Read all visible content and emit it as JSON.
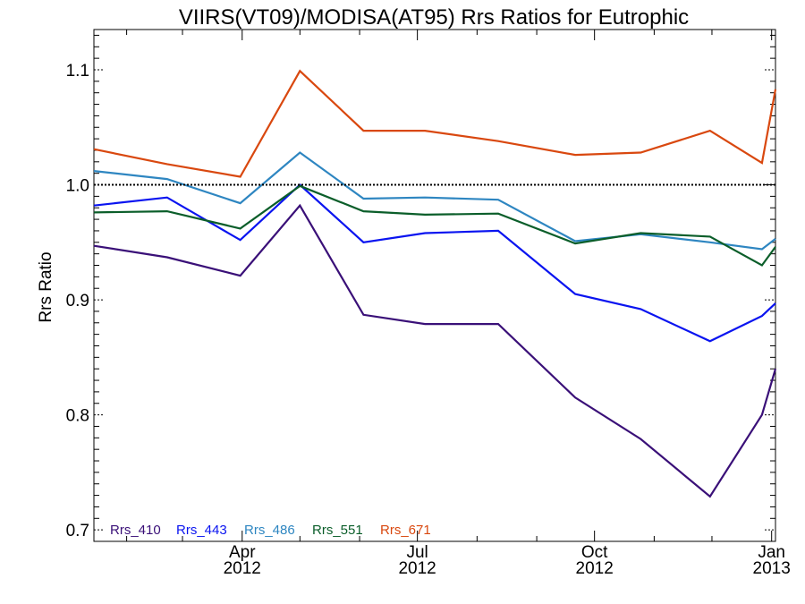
{
  "chart_data": {
    "type": "line",
    "title": "VIIRS(VT09)/MODISA(AT95)  Rrs Ratios for Eutrophic",
    "xlabel": "",
    "ylabel": "Rrs Ratio",
    "ylim": [
      0.69,
      1.135
    ],
    "xlim": [
      "2012-01-15",
      "2013-01-03"
    ],
    "x_ticks": [
      {
        "date": "2012-04-01",
        "line1": "Apr",
        "line2": "2012"
      },
      {
        "date": "2012-07-01",
        "line1": "Jul",
        "line2": "2012"
      },
      {
        "date": "2012-10-01",
        "line1": "Oct",
        "line2": "2012"
      },
      {
        "date": "2013-01-01",
        "line1": "Jan",
        "line2": "2013"
      }
    ],
    "y_ticks": [
      "0.7",
      "0.8",
      "0.9",
      "1.0",
      "1.1"
    ],
    "reference_line": 1.0,
    "grid": false,
    "legend_position": "bottom-left",
    "x": [
      "2012-01-15",
      "2012-02-22",
      "2012-03-31",
      "2012-05-01",
      "2012-06-03",
      "2012-07-05",
      "2012-08-12",
      "2012-09-21",
      "2012-10-25",
      "2012-11-30",
      "2012-12-27",
      "2013-01-03"
    ],
    "series": [
      {
        "name": "Rrs_410",
        "color": "#3a1078",
        "values": [
          0.947,
          0.937,
          0.921,
          0.982,
          0.887,
          0.879,
          0.879,
          0.815,
          0.779,
          0.729,
          0.8,
          0.84
        ]
      },
      {
        "name": "Rrs_443",
        "color": "#0a14f0",
        "values": [
          0.982,
          0.989,
          0.952,
          1.0,
          0.95,
          0.958,
          0.96,
          0.905,
          0.892,
          0.864,
          0.886,
          0.897
        ]
      },
      {
        "name": "Rrs_486",
        "color": "#2e86c1",
        "values": [
          1.012,
          1.005,
          0.984,
          1.028,
          0.988,
          0.989,
          0.987,
          0.951,
          0.957,
          0.95,
          0.944,
          0.953
        ]
      },
      {
        "name": "Rrs_551",
        "color": "#0b5e2a",
        "values": [
          0.976,
          0.977,
          0.962,
          0.999,
          0.977,
          0.974,
          0.975,
          0.949,
          0.958,
          0.955,
          0.93,
          0.946
        ]
      },
      {
        "name": "Rrs_671",
        "color": "#d9480f",
        "values": [
          1.031,
          1.018,
          1.007,
          1.099,
          1.047,
          1.047,
          1.038,
          1.026,
          1.028,
          1.047,
          1.019,
          1.083
        ]
      }
    ]
  }
}
